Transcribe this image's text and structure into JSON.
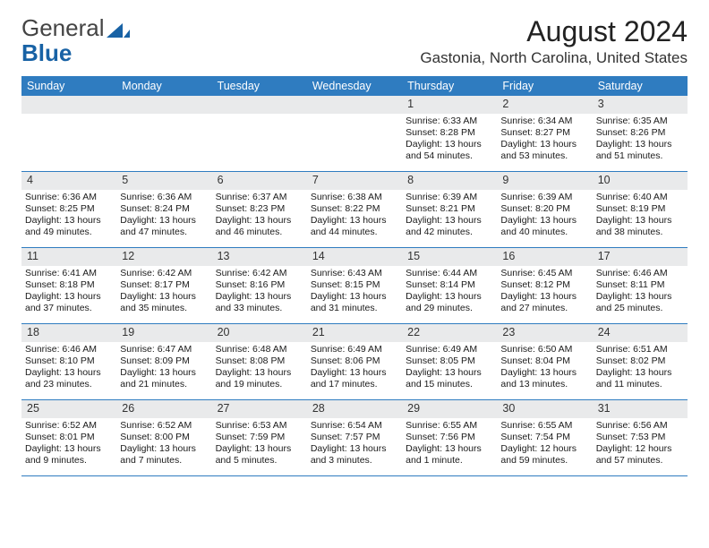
{
  "logo": {
    "word1": "General",
    "word2": "Blue"
  },
  "title": "August 2024",
  "location": "Gastonia, North Carolina, United States",
  "colors": {
    "header_bar": "#2f7cc0",
    "header_text": "#ffffff",
    "daynum_bg": "#e9eaeb",
    "row_border": "#2f7cc0"
  },
  "weekdays": [
    "Sunday",
    "Monday",
    "Tuesday",
    "Wednesday",
    "Thursday",
    "Friday",
    "Saturday"
  ],
  "weeks": [
    [
      {
        "empty": true
      },
      {
        "empty": true
      },
      {
        "empty": true
      },
      {
        "empty": true
      },
      {
        "n": "1",
        "sr": "6:33 AM",
        "ss": "8:28 PM",
        "dl1": "Daylight: 13 hours",
        "dl2": "and 54 minutes."
      },
      {
        "n": "2",
        "sr": "6:34 AM",
        "ss": "8:27 PM",
        "dl1": "Daylight: 13 hours",
        "dl2": "and 53 minutes."
      },
      {
        "n": "3",
        "sr": "6:35 AM",
        "ss": "8:26 PM",
        "dl1": "Daylight: 13 hours",
        "dl2": "and 51 minutes."
      }
    ],
    [
      {
        "n": "4",
        "sr": "6:36 AM",
        "ss": "8:25 PM",
        "dl1": "Daylight: 13 hours",
        "dl2": "and 49 minutes."
      },
      {
        "n": "5",
        "sr": "6:36 AM",
        "ss": "8:24 PM",
        "dl1": "Daylight: 13 hours",
        "dl2": "and 47 minutes."
      },
      {
        "n": "6",
        "sr": "6:37 AM",
        "ss": "8:23 PM",
        "dl1": "Daylight: 13 hours",
        "dl2": "and 46 minutes."
      },
      {
        "n": "7",
        "sr": "6:38 AM",
        "ss": "8:22 PM",
        "dl1": "Daylight: 13 hours",
        "dl2": "and 44 minutes."
      },
      {
        "n": "8",
        "sr": "6:39 AM",
        "ss": "8:21 PM",
        "dl1": "Daylight: 13 hours",
        "dl2": "and 42 minutes."
      },
      {
        "n": "9",
        "sr": "6:39 AM",
        "ss": "8:20 PM",
        "dl1": "Daylight: 13 hours",
        "dl2": "and 40 minutes."
      },
      {
        "n": "10",
        "sr": "6:40 AM",
        "ss": "8:19 PM",
        "dl1": "Daylight: 13 hours",
        "dl2": "and 38 minutes."
      }
    ],
    [
      {
        "n": "11",
        "sr": "6:41 AM",
        "ss": "8:18 PM",
        "dl1": "Daylight: 13 hours",
        "dl2": "and 37 minutes."
      },
      {
        "n": "12",
        "sr": "6:42 AM",
        "ss": "8:17 PM",
        "dl1": "Daylight: 13 hours",
        "dl2": "and 35 minutes."
      },
      {
        "n": "13",
        "sr": "6:42 AM",
        "ss": "8:16 PM",
        "dl1": "Daylight: 13 hours",
        "dl2": "and 33 minutes."
      },
      {
        "n": "14",
        "sr": "6:43 AM",
        "ss": "8:15 PM",
        "dl1": "Daylight: 13 hours",
        "dl2": "and 31 minutes."
      },
      {
        "n": "15",
        "sr": "6:44 AM",
        "ss": "8:14 PM",
        "dl1": "Daylight: 13 hours",
        "dl2": "and 29 minutes."
      },
      {
        "n": "16",
        "sr": "6:45 AM",
        "ss": "8:12 PM",
        "dl1": "Daylight: 13 hours",
        "dl2": "and 27 minutes."
      },
      {
        "n": "17",
        "sr": "6:46 AM",
        "ss": "8:11 PM",
        "dl1": "Daylight: 13 hours",
        "dl2": "and 25 minutes."
      }
    ],
    [
      {
        "n": "18",
        "sr": "6:46 AM",
        "ss": "8:10 PM",
        "dl1": "Daylight: 13 hours",
        "dl2": "and 23 minutes."
      },
      {
        "n": "19",
        "sr": "6:47 AM",
        "ss": "8:09 PM",
        "dl1": "Daylight: 13 hours",
        "dl2": "and 21 minutes."
      },
      {
        "n": "20",
        "sr": "6:48 AM",
        "ss": "8:08 PM",
        "dl1": "Daylight: 13 hours",
        "dl2": "and 19 minutes."
      },
      {
        "n": "21",
        "sr": "6:49 AM",
        "ss": "8:06 PM",
        "dl1": "Daylight: 13 hours",
        "dl2": "and 17 minutes."
      },
      {
        "n": "22",
        "sr": "6:49 AM",
        "ss": "8:05 PM",
        "dl1": "Daylight: 13 hours",
        "dl2": "and 15 minutes."
      },
      {
        "n": "23",
        "sr": "6:50 AM",
        "ss": "8:04 PM",
        "dl1": "Daylight: 13 hours",
        "dl2": "and 13 minutes."
      },
      {
        "n": "24",
        "sr": "6:51 AM",
        "ss": "8:02 PM",
        "dl1": "Daylight: 13 hours",
        "dl2": "and 11 minutes."
      }
    ],
    [
      {
        "n": "25",
        "sr": "6:52 AM",
        "ss": "8:01 PM",
        "dl1": "Daylight: 13 hours",
        "dl2": "and 9 minutes."
      },
      {
        "n": "26",
        "sr": "6:52 AM",
        "ss": "8:00 PM",
        "dl1": "Daylight: 13 hours",
        "dl2": "and 7 minutes."
      },
      {
        "n": "27",
        "sr": "6:53 AM",
        "ss": "7:59 PM",
        "dl1": "Daylight: 13 hours",
        "dl2": "and 5 minutes."
      },
      {
        "n": "28",
        "sr": "6:54 AM",
        "ss": "7:57 PM",
        "dl1": "Daylight: 13 hours",
        "dl2": "and 3 minutes."
      },
      {
        "n": "29",
        "sr": "6:55 AM",
        "ss": "7:56 PM",
        "dl1": "Daylight: 13 hours",
        "dl2": "and 1 minute."
      },
      {
        "n": "30",
        "sr": "6:55 AM",
        "ss": "7:54 PM",
        "dl1": "Daylight: 12 hours",
        "dl2": "and 59 minutes."
      },
      {
        "n": "31",
        "sr": "6:56 AM",
        "ss": "7:53 PM",
        "dl1": "Daylight: 12 hours",
        "dl2": "and 57 minutes."
      }
    ]
  ],
  "labels": {
    "sunrise_prefix": "Sunrise: ",
    "sunset_prefix": "Sunset: "
  }
}
